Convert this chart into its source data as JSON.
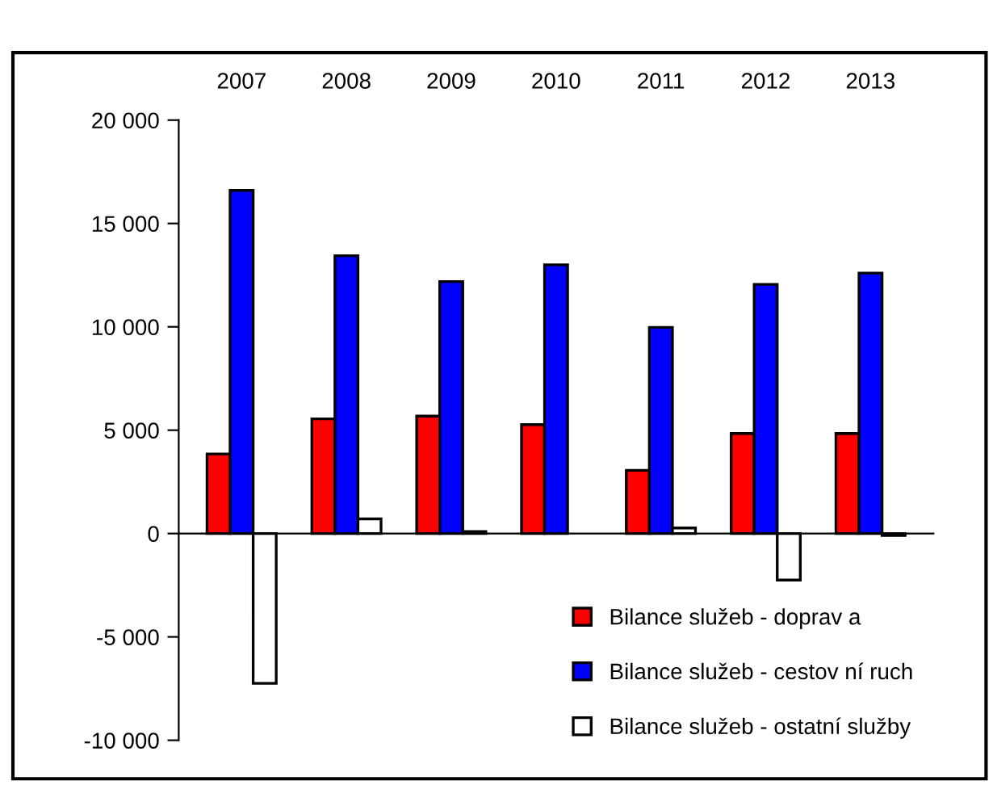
{
  "chart_data": {
    "type": "bar",
    "categories": [
      "2007",
      "2008",
      "2009",
      "2010",
      "2011",
      "2012",
      "2013"
    ],
    "series": [
      {
        "name": "Bilance služeb - doprav a",
        "color": "#ff0000",
        "values": [
          3850,
          5550,
          5680,
          5270,
          3060,
          4840,
          4840
        ]
      },
      {
        "name": "Bilance služeb - cestov ní ruch",
        "color": "#0000ff",
        "values": [
          16600,
          13440,
          12190,
          13000,
          9970,
          12050,
          12600
        ]
      },
      {
        "name": "Bilance služeb - ostatní služby",
        "color": "#ffffff",
        "values": [
          -7250,
          710,
          100,
          null,
          270,
          -2250,
          -100
        ]
      }
    ],
    "ylim": [
      -10000,
      20000
    ],
    "yticks": [
      {
        "value": -10000,
        "label": "-10 000"
      },
      {
        "value": -5000,
        "label": "-5 000"
      },
      0,
      {
        "value": 5000,
        "label": "5 000"
      },
      {
        "value": 10000,
        "label": "10 000"
      },
      {
        "value": 15000,
        "label": "15 000"
      },
      {
        "value": 20000,
        "label": "20 000"
      }
    ],
    "legend": "bottom right"
  }
}
